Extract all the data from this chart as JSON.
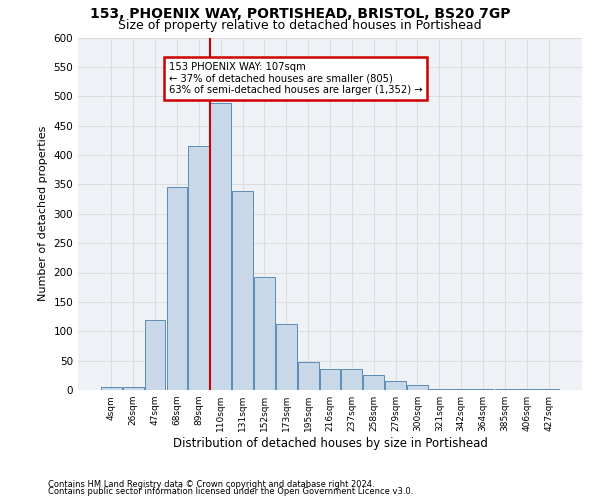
{
  "title1": "153, PHOENIX WAY, PORTISHEAD, BRISTOL, BS20 7GP",
  "title2": "Size of property relative to detached houses in Portishead",
  "xlabel": "Distribution of detached houses by size in Portishead",
  "ylabel": "Number of detached properties",
  "footnote1": "Contains HM Land Registry data © Crown copyright and database right 2024.",
  "footnote2": "Contains public sector information licensed under the Open Government Licence v3.0.",
  "bin_labels": [
    "4sqm",
    "26sqm",
    "47sqm",
    "68sqm",
    "89sqm",
    "110sqm",
    "131sqm",
    "152sqm",
    "173sqm",
    "195sqm",
    "216sqm",
    "237sqm",
    "258sqm",
    "279sqm",
    "300sqm",
    "321sqm",
    "342sqm",
    "364sqm",
    "385sqm",
    "406sqm",
    "427sqm"
  ],
  "bar_heights": [
    5,
    5,
    120,
    345,
    415,
    488,
    338,
    192,
    112,
    48,
    35,
    35,
    25,
    15,
    8,
    2,
    2,
    1,
    1,
    1,
    1
  ],
  "bar_color": "#c8d8e8",
  "bar_edge_color": "#5b8db8",
  "vline_color": "#cc0000",
  "annotation_box_color": "#cc0000",
  "ylim": [
    0,
    600
  ],
  "yticks": [
    0,
    50,
    100,
    150,
    200,
    250,
    300,
    350,
    400,
    450,
    500,
    550,
    600
  ],
  "grid_color": "#dddddd",
  "bg_color": "#eef2f7",
  "title1_fontsize": 10,
  "title2_fontsize": 9,
  "property_label": "153 PHOENIX WAY: 107sqm",
  "annotation_line1": "← 37% of detached houses are smaller (805)",
  "annotation_line2": "63% of semi-detached houses are larger (1,352) →"
}
